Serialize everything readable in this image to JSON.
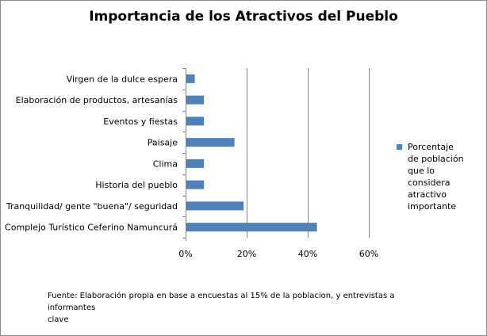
{
  "chart_data": {
    "type": "bar",
    "orientation": "horizontal",
    "title": "Importancia de los Atractivos del Pueblo",
    "categories": [
      "Virgen de la dulce espera",
      "Elaboración de productos, artesanías",
      "Eventos y fiestas",
      "Paisaje",
      "Clima",
      "Historia del pueblo",
      "Tranquilidad/ gente \"buena\"/ seguridad",
      "Complejo Turístico Ceferino Namuncurá"
    ],
    "series": [
      {
        "name": "Porcentaje de población que lo considera atractivo importante",
        "values": [
          0.03,
          0.06,
          0.06,
          0.16,
          0.06,
          0.06,
          0.19,
          0.43
        ],
        "color": "#4f81bd"
      }
    ],
    "xlim": [
      0,
      0.6
    ],
    "x_ticks": [
      0,
      0.2,
      0.4,
      0.6
    ],
    "x_tick_labels": [
      "0%",
      "20%",
      "40%",
      "60%"
    ],
    "grid": "vertical major gridlines",
    "legend_position": "right"
  },
  "legend": {
    "lines": [
      "Porcentaje",
      "de población",
      "que lo",
      "considera",
      "atractivo",
      "importante"
    ]
  },
  "source_lines": [
    "Fuente: Elaboración propia en base a encuestas  al 15% de la  poblacion, y entrevistas a informantes",
    "clave"
  ]
}
